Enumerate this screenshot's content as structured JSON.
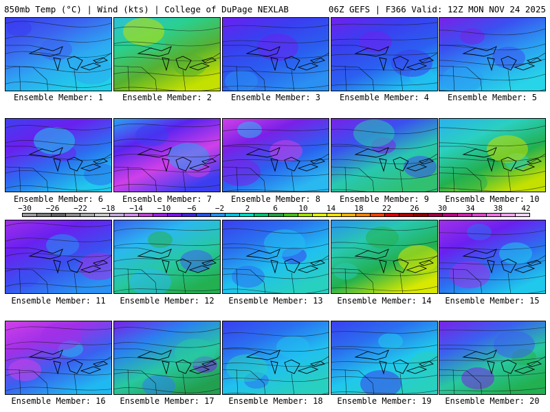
{
  "header": {
    "left": "850mb Temp (°C) | Wind (kts) | College of DuPage NEXLAB",
    "right": "06Z GEFS | F366 Valid: 12Z MON NOV 24 2025"
  },
  "colorbar": {
    "labels": [
      "−30",
      "−26",
      "−22",
      "−18",
      "−14",
      "−10",
      "−6",
      "−2",
      "2",
      "6",
      "10",
      "14",
      "18",
      "22",
      "26",
      "30",
      "34",
      "38",
      "42"
    ],
    "colors": [
      "#9a9a9a",
      "#7a7a7a",
      "#626262",
      "#8c8c8c",
      "#a8a8a8",
      "#c8c8c8",
      "#bfa6d8",
      "#d08ae8",
      "#c040d8",
      "#9a20e8",
      "#7a10f0",
      "#4020e0",
      "#2050f0",
      "#1e90ff",
      "#00c0e0",
      "#00d8c0",
      "#00c070",
      "#20a040",
      "#40c010",
      "#a0e000",
      "#e0f000",
      "#ffe000",
      "#ffb000",
      "#ff8000",
      "#ff4000",
      "#e00000",
      "#b00000",
      "#900000",
      "#a00040",
      "#c00080",
      "#d020b0",
      "#e040d0",
      "#f070e8",
      "#f8a0f0",
      "#ffd0ff"
    ]
  },
  "panels": [
    {
      "label": "Ensemble Member: 1",
      "colors": [
        "#3a3cf0",
        "#3c62f0",
        "#2da8f2",
        "#1fd0e8"
      ]
    },
    {
      "label": "Ensemble Member: 2",
      "colors": [
        "#2ec0d8",
        "#2ad090",
        "#56b030",
        "#c4e000"
      ]
    },
    {
      "label": "Ensemble Member: 3",
      "colors": [
        "#6a20f0",
        "#3a3ef0",
        "#2a5ef0",
        "#2a90f2"
      ]
    },
    {
      "label": "Ensemble Member: 4",
      "colors": [
        "#7020f0",
        "#3a3ef0",
        "#2a60f0",
        "#20c0f0"
      ]
    },
    {
      "label": "Ensemble Member: 5",
      "colors": [
        "#7a20e8",
        "#3a50f0",
        "#2aa0f2",
        "#28d4e8"
      ]
    },
    {
      "label": "Ensemble Member: 6",
      "colors": [
        "#3e40f0",
        "#6a20f0",
        "#2a70f0",
        "#20c8ec"
      ]
    },
    {
      "label": "Ensemble Member: 7",
      "colors": [
        "#2aa0f2",
        "#5a24f0",
        "#d040e8",
        "#3a3ef0"
      ]
    },
    {
      "label": "Ensemble Member: 8",
      "colors": [
        "#d040e8",
        "#7a20e8",
        "#2a60f0",
        "#2ab8f0"
      ]
    },
    {
      "label": "Ensemble Member: 9",
      "colors": [
        "#7a20e8",
        "#3a50f0",
        "#28c8b0",
        "#30c070"
      ]
    },
    {
      "label": "Ensemble Member: 10",
      "colors": [
        "#2ab0f0",
        "#2ad0c0",
        "#22b050",
        "#c4e000"
      ]
    },
    {
      "label": "Ensemble Member: 11",
      "colors": [
        "#a030e8",
        "#6a20f0",
        "#3a50f0",
        "#2a90f2"
      ]
    },
    {
      "label": "Ensemble Member: 12",
      "colors": [
        "#3a60f0",
        "#2ab8f0",
        "#28c8a0",
        "#22b050"
      ]
    },
    {
      "label": "Ensemble Member: 13",
      "colors": [
        "#3a3ef0",
        "#2a70f0",
        "#20c0f0",
        "#28d0c0"
      ]
    },
    {
      "label": "Ensemble Member: 14",
      "colors": [
        "#2a90f2",
        "#28c8b0",
        "#22b050",
        "#d8e800"
      ]
    },
    {
      "label": "Ensemble Member: 15",
      "colors": [
        "#a030e8",
        "#6a20f0",
        "#2a70f0",
        "#20c8ec"
      ]
    },
    {
      "label": "Ensemble Member: 16",
      "colors": [
        "#d040e8",
        "#a030e8",
        "#3a60f0",
        "#20b8f0"
      ]
    },
    {
      "label": "Ensemble Member: 17",
      "colors": [
        "#7a20e8",
        "#2a80f0",
        "#28c8a0",
        "#22a050"
      ]
    },
    {
      "label": "Ensemble Member: 18",
      "colors": [
        "#3a3ef0",
        "#2a70f0",
        "#20c0f0",
        "#28d0c0"
      ]
    },
    {
      "label": "Ensemble Member: 19",
      "colors": [
        "#3a3ef0",
        "#2a70f0",
        "#20c8ec",
        "#28d0c0"
      ]
    },
    {
      "label": "Ensemble Member: 20",
      "colors": [
        "#7a20e8",
        "#3a60f0",
        "#28c8a0",
        "#22b050"
      ]
    }
  ]
}
